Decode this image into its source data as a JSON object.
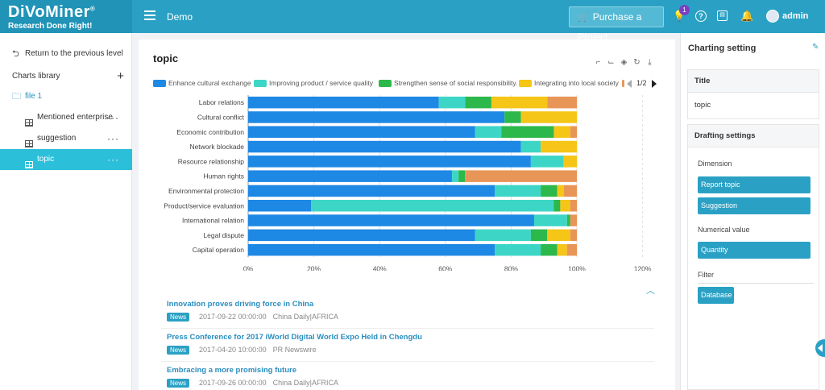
{
  "topbar": {
    "logo": "DiVoMiner",
    "logo_reg": "®",
    "tagline": "Research Done Right!",
    "project": "Demo",
    "purchase_label": "Purchase a Project",
    "notification_count": "1",
    "user": "admin"
  },
  "sidebar": {
    "back_label": "Return to the previous level",
    "library_label": "Charts library",
    "folder_label": "file 1",
    "items": [
      {
        "label": "Mentioned enterprise",
        "active": false
      },
      {
        "label": "suggestion",
        "active": false
      },
      {
        "label": "topic",
        "active": true
      }
    ],
    "more": "···"
  },
  "main": {
    "title": "topic",
    "legend_page": "1/2",
    "news": [
      {
        "title": "Innovation proves driving force in China",
        "tag": "News",
        "date": "2017-09-22 00:00:00",
        "source": "China Daily|AFRICA"
      },
      {
        "title": "Press Conference for 2017 iWorld Digital World Expo Held in Chengdu",
        "tag": "News",
        "date": "2017-04-20 10:00:00",
        "source": "PR Newswire"
      },
      {
        "title": "Embracing a more promising future",
        "tag": "News",
        "date": "2017-09-26 00:00:00",
        "source": "China Daily|AFRICA"
      }
    ]
  },
  "chart_data": {
    "type": "bar",
    "orientation": "horizontal",
    "stacked": "percent",
    "categories": [
      "Labor relations",
      "Cultural conflict",
      "Economic contribution",
      "Network blockade",
      "Resource relationship",
      "Human rights",
      "Environmental protection",
      "Product/service evaluation",
      "International relation",
      "Legal dispute",
      "Capital operation"
    ],
    "series": [
      {
        "name": "Enhance cultural exchange",
        "color": "#1e88e5",
        "values": [
          58,
          78,
          69,
          83,
          86,
          62,
          75,
          19,
          87,
          69,
          75
        ]
      },
      {
        "name": "Improving product / service quality",
        "color": "#3dd6c6",
        "values": [
          8,
          0,
          8,
          6,
          10,
          2,
          14,
          73,
          10,
          17,
          14
        ]
      },
      {
        "name": "Strengthen sense of social responsibility.",
        "color": "#2db84c",
        "values": [
          8,
          5,
          16,
          0,
          0,
          2,
          5,
          2,
          1,
          5,
          5
        ]
      },
      {
        "name": "Integrating into local society",
        "color": "#f5c518",
        "values": [
          17,
          17,
          5,
          11,
          4,
          0,
          2,
          3,
          0,
          7,
          3
        ]
      },
      {
        "name": "",
        "color": "#e89558",
        "values": [
          9,
          0,
          2,
          0,
          0,
          34,
          4,
          2,
          2,
          2,
          3
        ]
      }
    ],
    "xticks": [
      "0%",
      "20%",
      "40%",
      "60%",
      "80%",
      "100%",
      "120%"
    ],
    "xlim": [
      0,
      120
    ],
    "legend_position": "top"
  },
  "rightpanel": {
    "title": "Charting setting",
    "title_section": "Title",
    "title_value": "topic",
    "drafting_section": "Drafting settings",
    "dimension_label": "Dimension",
    "dimension_chips": [
      "Report topic",
      "Suggestion"
    ],
    "numerical_label": "Numerical value",
    "numerical_chip": "Quantity",
    "filter_label": "Filter",
    "filter_chip": "Database"
  }
}
